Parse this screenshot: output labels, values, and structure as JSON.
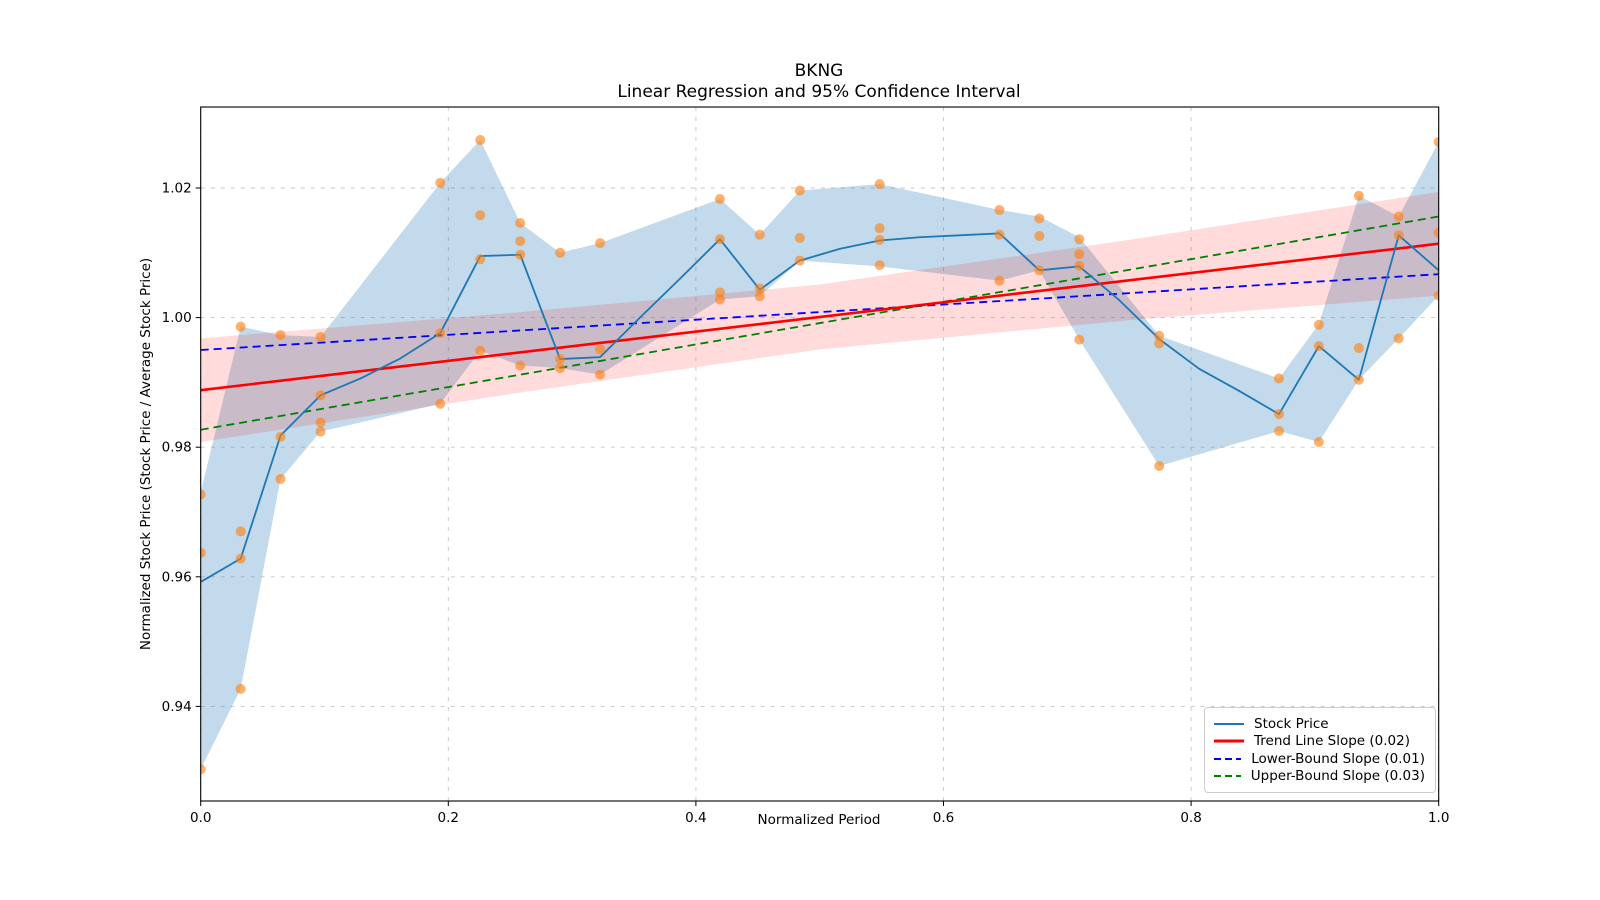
{
  "chart_data": {
    "type": "line",
    "title": "BKNG",
    "subtitle": "Linear Regression and 95% Confidence Interval",
    "xlabel": "Normalized Period",
    "ylabel": "Normalized Stock Price (Stock Price / Average Stock Price)",
    "xlim": [
      0,
      1
    ],
    "ylim": [
      0.9254,
      1.0325
    ],
    "xticks": [
      0.0,
      0.2,
      0.4,
      0.6,
      0.8,
      1.0
    ],
    "xtick_labels": [
      "0.0",
      "0.2",
      "0.4",
      "0.6",
      "0.8",
      "1.0"
    ],
    "yticks": [
      0.94,
      0.96,
      0.98,
      1.0,
      1.02
    ],
    "ytick_labels": [
      "0.94",
      "0.96",
      "0.98",
      "1.00",
      "1.02"
    ],
    "grid": true,
    "legend_position": "lower right",
    "colors": {
      "stock_line": "#1f77b4",
      "scatter": "#ff7f0e",
      "trend_line": "#ff0000",
      "lower_bound": "#0000ff",
      "upper_bound": "#008000",
      "stock_band_fill": "rgba(31,119,180,0.27)",
      "ci_band_fill": "rgba(255,0,0,0.14)",
      "grid_color": "#c7c7c7",
      "spine_color": "#000000"
    },
    "stock_line": {
      "label": "Stock Price",
      "x": [
        0.0,
        0.0323,
        0.0645,
        0.0968,
        0.129,
        0.1613,
        0.1935,
        0.2258,
        0.2581,
        0.2903,
        0.3226,
        0.3548,
        0.3871,
        0.4194,
        0.4516,
        0.4839,
        0.5161,
        0.5484,
        0.5806,
        0.6129,
        0.6452,
        0.6774,
        0.7097,
        0.7419,
        0.7742,
        0.8065,
        0.8387,
        0.871,
        0.9032,
        0.9355,
        0.9677,
        1.0
      ],
      "y": [
        0.9592,
        0.9628,
        0.9818,
        0.988,
        0.9906,
        0.9937,
        0.9976,
        1.0095,
        1.0097,
        0.9936,
        0.9939,
        1.0,
        1.006,
        1.0121,
        1.0043,
        1.0088,
        1.0106,
        1.0119,
        1.0124,
        1.0127,
        1.013,
        1.0073,
        1.0079,
        1.0027,
        0.9967,
        0.9921,
        0.9887,
        0.9851,
        0.9956,
        0.9904,
        1.0127,
        1.0073
      ]
    },
    "scatter": {
      "points": [
        [
          0.0,
          0.9727
        ],
        [
          0.0,
          0.9637
        ],
        [
          0.0,
          0.9303
        ],
        [
          0.0323,
          0.9986
        ],
        [
          0.0323,
          0.967
        ],
        [
          0.0323,
          0.9628
        ],
        [
          0.0323,
          0.9427
        ],
        [
          0.0645,
          0.9973
        ],
        [
          0.0645,
          0.9816
        ],
        [
          0.0645,
          0.9751
        ],
        [
          0.0968,
          0.997
        ],
        [
          0.0968,
          0.988
        ],
        [
          0.0968,
          0.9838
        ],
        [
          0.0968,
          0.9824
        ],
        [
          0.1935,
          1.0208
        ],
        [
          0.1935,
          0.9976
        ],
        [
          0.1935,
          0.9867
        ],
        [
          0.2258,
          1.0274
        ],
        [
          0.2258,
          1.0158
        ],
        [
          0.2258,
          1.009
        ],
        [
          0.2258,
          0.9949
        ],
        [
          0.2581,
          1.0146
        ],
        [
          0.2581,
          1.0118
        ],
        [
          0.2581,
          1.0097
        ],
        [
          0.2581,
          0.9926
        ],
        [
          0.2903,
          1.01
        ],
        [
          0.2903,
          0.9936
        ],
        [
          0.2903,
          0.9922
        ],
        [
          0.3226,
          1.0115
        ],
        [
          0.3226,
          0.9951
        ],
        [
          0.3226,
          0.9912
        ],
        [
          0.4194,
          1.0183
        ],
        [
          0.4194,
          1.0121
        ],
        [
          0.4194,
          1.0039
        ],
        [
          0.4194,
          1.0028
        ],
        [
          0.4516,
          1.0128
        ],
        [
          0.4516,
          1.0045
        ],
        [
          0.4516,
          1.0033
        ],
        [
          0.4839,
          1.0196
        ],
        [
          0.4839,
          1.0123
        ],
        [
          0.4839,
          1.0088
        ],
        [
          0.5484,
          1.0206
        ],
        [
          0.5484,
          1.0138
        ],
        [
          0.5484,
          1.012
        ],
        [
          0.5484,
          1.0081
        ],
        [
          0.6452,
          1.0166
        ],
        [
          0.6452,
          1.0128
        ],
        [
          0.6452,
          1.0057
        ],
        [
          0.6774,
          1.0153
        ],
        [
          0.6774,
          1.0126
        ],
        [
          0.6774,
          1.0073
        ],
        [
          0.7097,
          1.0121
        ],
        [
          0.7097,
          1.0098
        ],
        [
          0.7097,
          1.008
        ],
        [
          0.7097,
          0.9966
        ],
        [
          0.7742,
          0.9972
        ],
        [
          0.7742,
          0.996
        ],
        [
          0.7742,
          0.9771
        ],
        [
          0.871,
          0.9906
        ],
        [
          0.871,
          0.9851
        ],
        [
          0.871,
          0.9825
        ],
        [
          0.9032,
          0.9989
        ],
        [
          0.9032,
          0.9956
        ],
        [
          0.9032,
          0.9808
        ],
        [
          0.9355,
          1.0188
        ],
        [
          0.9355,
          0.9953
        ],
        [
          0.9355,
          0.9904
        ],
        [
          0.9677,
          1.0156
        ],
        [
          0.9677,
          1.0127
        ],
        [
          0.9677,
          0.9968
        ],
        [
          1.0,
          1.0271
        ],
        [
          1.0,
          1.0131
        ],
        [
          1.0,
          1.0034
        ]
      ]
    },
    "stock_band": {
      "x": [
        0.0,
        0.0323,
        0.0645,
        0.0968,
        0.1935,
        0.2258,
        0.2581,
        0.2903,
        0.3226,
        0.4194,
        0.4516,
        0.4839,
        0.5484,
        0.6452,
        0.6774,
        0.7097,
        0.7742,
        0.871,
        0.9032,
        0.9355,
        0.9677,
        1.0
      ],
      "top": [
        0.973,
        0.9986,
        0.9973,
        0.997,
        1.0208,
        1.0274,
        1.0146,
        1.01,
        1.0115,
        1.0183,
        1.0128,
        1.0196,
        1.0206,
        1.0166,
        1.0156,
        1.0124,
        0.9972,
        0.9906,
        0.999,
        1.0188,
        1.0156,
        1.0271
      ],
      "bottom": [
        0.9303,
        0.9427,
        0.9751,
        0.9824,
        0.9867,
        0.9949,
        0.9926,
        0.9922,
        0.9912,
        1.0028,
        1.0033,
        1.0088,
        1.0079,
        1.0057,
        1.0073,
        0.9966,
        0.9771,
        0.9825,
        0.9808,
        0.9904,
        0.9968,
        1.0034
      ]
    },
    "trend_line": {
      "label": "Trend Line Slope (0.02)",
      "x": [
        0,
        1
      ],
      "y": [
        0.9888,
        1.0114
      ]
    },
    "ci_band": {
      "x": [
        0,
        0.25,
        0.5,
        0.75,
        1
      ],
      "top": [
        0.9968,
        1.0007,
        1.0051,
        1.012,
        1.0194
      ],
      "bottom": [
        0.9808,
        0.9882,
        0.9951,
        0.9996,
        1.0034
      ]
    },
    "lower_bound": {
      "label": "Lower-Bound Slope (0.01)",
      "x": [
        0,
        1
      ],
      "y": [
        0.995,
        1.0067
      ]
    },
    "upper_bound": {
      "label": "Upper-Bound Slope (0.03)",
      "x": [
        0,
        1
      ],
      "y": [
        0.9827,
        1.0156
      ]
    },
    "legend": [
      {
        "label": "Stock Price",
        "style": "solid",
        "color": "#1f77b4",
        "width": 2
      },
      {
        "label": "Trend Line Slope (0.02)",
        "style": "solid",
        "color": "#ff0000",
        "width": 3
      },
      {
        "label": "Lower-Bound Slope (0.01)",
        "style": "dashed",
        "color": "#0000ff",
        "width": 2
      },
      {
        "label": "Upper-Bound Slope (0.03)",
        "style": "dashed",
        "color": "#008000",
        "width": 2
      }
    ]
  }
}
